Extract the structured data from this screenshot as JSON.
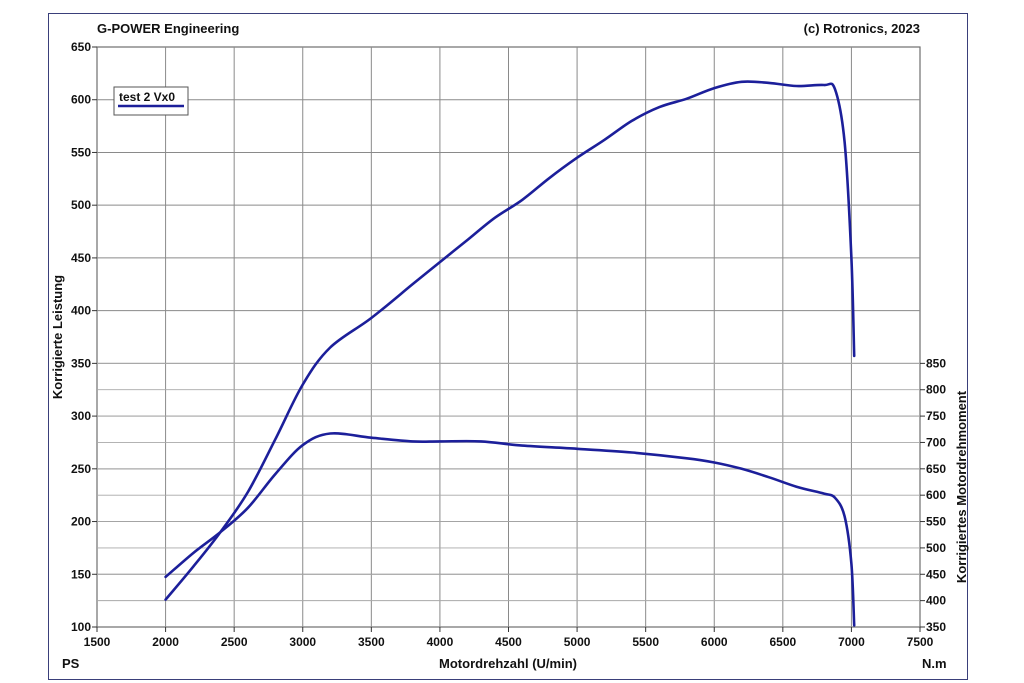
{
  "header": {
    "left": "G-POWER Engineering",
    "right": "(c) Rotronics, 2023"
  },
  "chart_data": {
    "type": "line",
    "xlabel": "Motordrehzahl (U/min)",
    "xlim": [
      1500,
      7500
    ],
    "x_ticks": [
      "1500",
      "2000",
      "2500",
      "3000",
      "3500",
      "4000",
      "4500",
      "5000",
      "5500",
      "6000",
      "6500",
      "7000",
      "7500"
    ],
    "ylabel_left": "Korrigierte Leistung",
    "ylim_left": [
      100,
      650
    ],
    "y_ticks_left": [
      "100",
      "150",
      "200",
      "250",
      "300",
      "350",
      "400",
      "450",
      "500",
      "550",
      "600",
      "650"
    ],
    "unit_left": "PS",
    "ylabel_right": "Korrigiertes Motordrehmoment",
    "ylim_right": [
      350,
      850
    ],
    "y_ticks_right": [
      "350",
      "400",
      "450",
      "500",
      "550",
      "600",
      "650",
      "700",
      "750",
      "800",
      "850"
    ],
    "unit_right": "N.m",
    "legend": {
      "label": "test 2 Vx0",
      "position": "top-left"
    },
    "color": "#1c1f9a",
    "grid": true,
    "series": [
      {
        "name": "test 2 Vx0",
        "quantity": "power",
        "axis": "left",
        "x": [
          2000,
          2200,
          2400,
          2600,
          2800,
          3000,
          3200,
          3500,
          3800,
          4000,
          4200,
          4400,
          4600,
          4800,
          5000,
          5200,
          5400,
          5600,
          5800,
          6000,
          6200,
          6400,
          6600,
          6800,
          6880,
          6950,
          7000,
          7020
        ],
        "values": [
          126,
          157,
          190,
          228,
          278,
          330,
          365,
          393,
          425,
          446,
          467,
          488,
          505,
          526,
          545,
          562,
          580,
          593,
          601,
          611,
          617,
          616,
          613,
          614,
          610,
          560,
          450,
          357
        ]
      },
      {
        "name": "test 2 Vx0",
        "quantity": "torque",
        "axis": "right",
        "x": [
          2000,
          2200,
          2400,
          2600,
          2800,
          3000,
          3200,
          3500,
          3800,
          4000,
          4300,
          4600,
          5000,
          5400,
          5800,
          6000,
          6200,
          6400,
          6600,
          6800,
          6880,
          6950,
          7000,
          7020
        ],
        "values": [
          445,
          490,
          530,
          576,
          640,
          695,
          717,
          709,
          702,
          702,
          702,
          694,
          688,
          681,
          670,
          662,
          650,
          634,
          616,
          603,
          595,
          560,
          470,
          353
        ]
      }
    ]
  }
}
